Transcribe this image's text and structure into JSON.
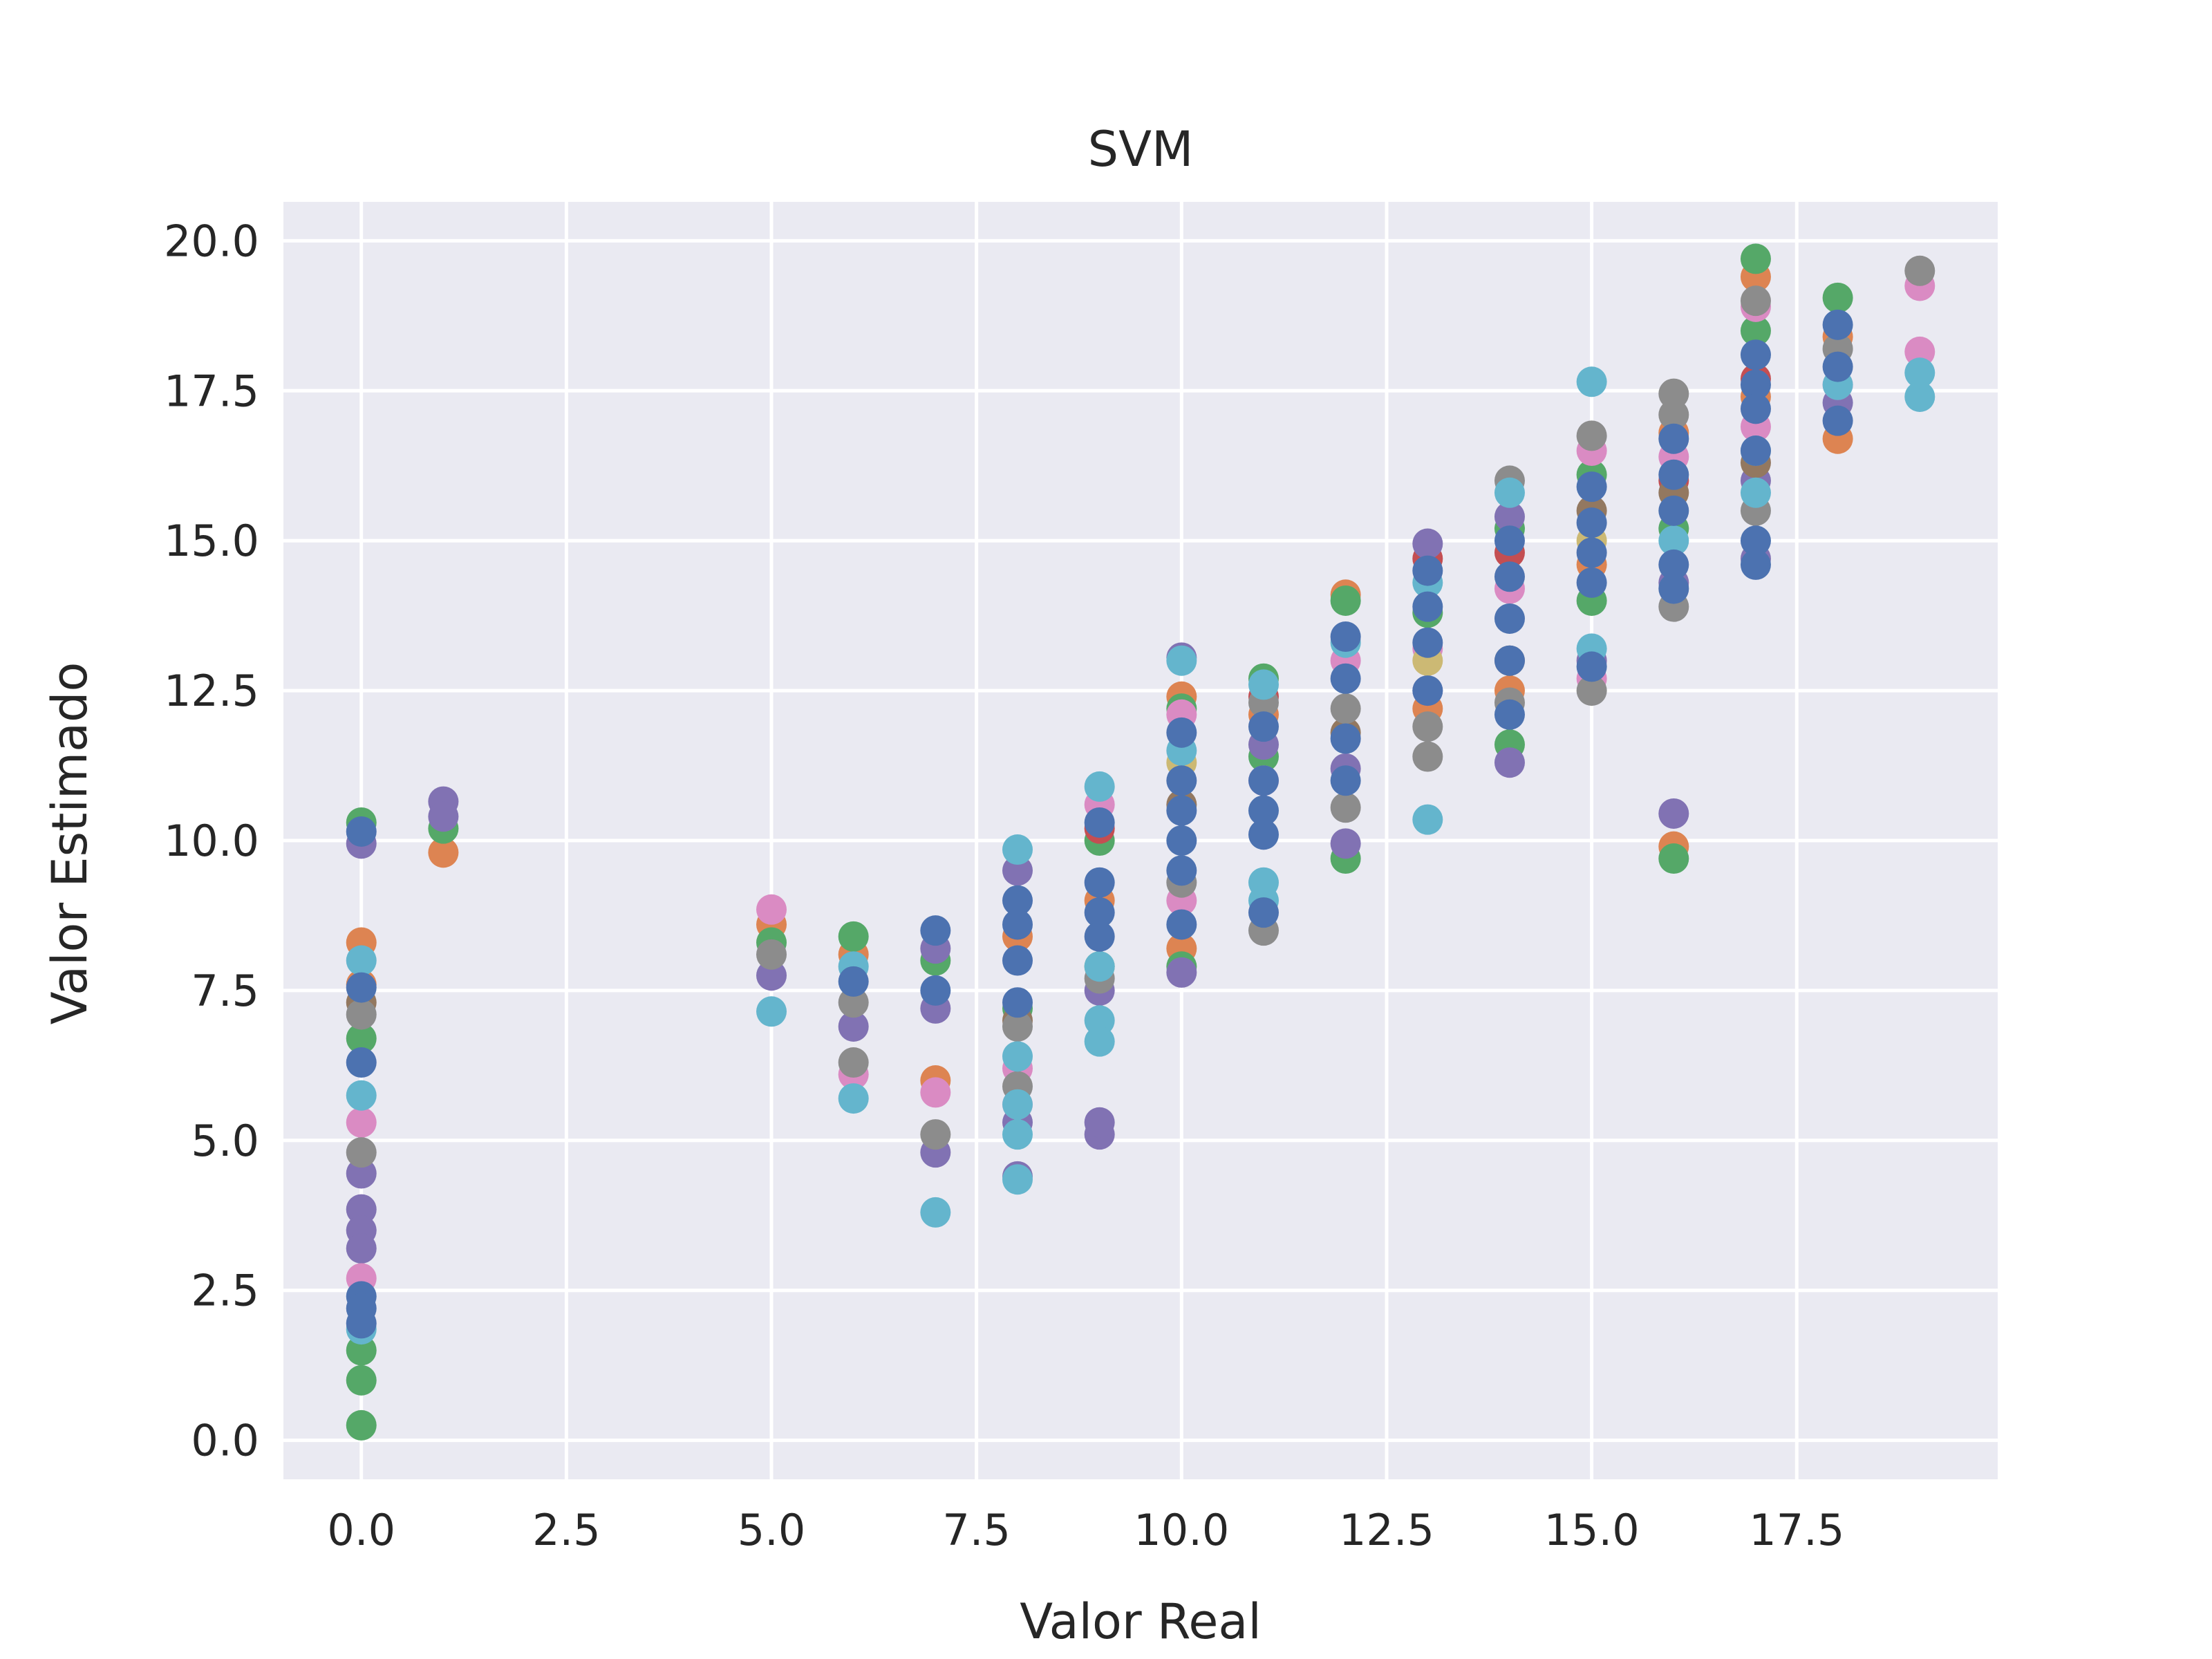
{
  "chart_data": {
    "type": "scatter",
    "title": "SVM",
    "xlabel": "Valor Real",
    "ylabel": "Valor Estimado",
    "xlim": [
      -0.95,
      19.95
    ],
    "ylim": [
      -0.65,
      20.65
    ],
    "xticks": [
      0.0,
      2.5,
      5.0,
      7.5,
      10.0,
      12.5,
      15.0,
      17.5
    ],
    "xtick_labels": [
      "0.0",
      "2.5",
      "5.0",
      "7.5",
      "10.0",
      "12.5",
      "15.0",
      "17.5"
    ],
    "yticks": [
      0.0,
      2.5,
      5.0,
      7.5,
      10.0,
      12.5,
      15.0,
      17.5,
      20.0
    ],
    "ytick_labels": [
      "0.0",
      "2.5",
      "5.0",
      "7.5",
      "10.0",
      "12.5",
      "15.0",
      "17.5",
      "20.0"
    ],
    "grid": true,
    "legend": "none",
    "background": "#eaeaf2",
    "series": [
      {
        "color": "#dd8452",
        "points": [
          [
            0,
            8.3
          ],
          [
            0,
            7.6
          ],
          [
            1,
            9.8
          ],
          [
            5,
            8.6
          ],
          [
            6,
            8.1
          ],
          [
            7,
            6.0
          ],
          [
            8,
            8.4
          ],
          [
            9,
            9.0
          ],
          [
            10,
            12.4
          ],
          [
            10,
            8.2
          ],
          [
            11,
            12.1
          ],
          [
            12,
            14.1
          ],
          [
            13,
            12.2
          ],
          [
            14,
            12.5
          ],
          [
            15,
            14.6
          ],
          [
            16,
            9.9
          ],
          [
            16,
            16.8
          ],
          [
            17,
            19.4
          ],
          [
            17,
            17.4
          ],
          [
            18,
            16.7
          ],
          [
            18,
            18.4
          ]
        ]
      },
      {
        "color": "#55a868",
        "points": [
          [
            0,
            0.25
          ],
          [
            0,
            1.0
          ],
          [
            0,
            1.5
          ],
          [
            0,
            6.7
          ],
          [
            0,
            10.3
          ],
          [
            1,
            10.2
          ],
          [
            5,
            8.3
          ],
          [
            6,
            8.4
          ],
          [
            7,
            8.0
          ],
          [
            8,
            7.2
          ],
          [
            9,
            7.9
          ],
          [
            9,
            10.0
          ],
          [
            10,
            7.9
          ],
          [
            10,
            12.2
          ],
          [
            11,
            12.7
          ],
          [
            11,
            11.4
          ],
          [
            12,
            9.7
          ],
          [
            12,
            14.0
          ],
          [
            13,
            13.8
          ],
          [
            14,
            11.6
          ],
          [
            14,
            15.2
          ],
          [
            15,
            14.0
          ],
          [
            15,
            16.1
          ],
          [
            16,
            9.7
          ],
          [
            16,
            15.2
          ],
          [
            17,
            19.7
          ],
          [
            17,
            18.5
          ],
          [
            18,
            19.05
          ]
        ]
      },
      {
        "color": "#c44e52",
        "points": [
          [
            9,
            10.2
          ],
          [
            11,
            12.4
          ],
          [
            13,
            14.7
          ],
          [
            14,
            14.8
          ],
          [
            16,
            16.0
          ],
          [
            17,
            17.7
          ]
        ]
      },
      {
        "color": "#8172b3",
        "points": [
          [
            0,
            9.95
          ],
          [
            0,
            3.85
          ],
          [
            0,
            3.5
          ],
          [
            0,
            3.2
          ],
          [
            0,
            4.45
          ],
          [
            1,
            10.65
          ],
          [
            1,
            10.4
          ],
          [
            5,
            7.75
          ],
          [
            6,
            6.9
          ],
          [
            7,
            7.2
          ],
          [
            7,
            4.8
          ],
          [
            7,
            8.2
          ],
          [
            8,
            4.4
          ],
          [
            8,
            9.5
          ],
          [
            8,
            5.3
          ],
          [
            9,
            5.1
          ],
          [
            9,
            5.3
          ],
          [
            9,
            7.5
          ],
          [
            10,
            13.05
          ],
          [
            10,
            7.8
          ],
          [
            11,
            11.6
          ],
          [
            12,
            9.95
          ],
          [
            12,
            11.2
          ],
          [
            13,
            14.95
          ],
          [
            13,
            12.5
          ],
          [
            14,
            11.3
          ],
          [
            14,
            15.4
          ],
          [
            15,
            13.0
          ],
          [
            16,
            10.45
          ],
          [
            16,
            14.3
          ],
          [
            17,
            14.7
          ],
          [
            17,
            16.0
          ],
          [
            18,
            17.3
          ]
        ]
      },
      {
        "color": "#937860",
        "points": [
          [
            0,
            7.3
          ],
          [
            8,
            7.0
          ],
          [
            10,
            10.6
          ],
          [
            12,
            11.8
          ],
          [
            14,
            13.0
          ],
          [
            15,
            15.5
          ],
          [
            16,
            15.8
          ],
          [
            17,
            16.3
          ]
        ]
      },
      {
        "color": "#da8bc3",
        "points": [
          [
            0,
            5.3
          ],
          [
            0,
            2.7
          ],
          [
            5,
            8.85
          ],
          [
            6,
            6.1
          ],
          [
            7,
            5.8
          ],
          [
            8,
            6.2
          ],
          [
            8,
            5.6
          ],
          [
            9,
            10.6
          ],
          [
            10,
            12.1
          ],
          [
            10,
            9.0
          ],
          [
            11,
            11.0
          ],
          [
            12,
            13.0
          ],
          [
            13,
            13.2
          ],
          [
            14,
            14.2
          ],
          [
            15,
            12.7
          ],
          [
            15,
            16.5
          ],
          [
            16,
            16.4
          ],
          [
            17,
            18.9
          ],
          [
            17,
            16.9
          ],
          [
            18,
            17.6
          ],
          [
            19,
            19.25
          ],
          [
            19,
            18.15
          ]
        ]
      },
      {
        "color": "#8c8c8c",
        "points": [
          [
            0,
            7.1
          ],
          [
            0,
            4.8
          ],
          [
            5,
            8.1
          ],
          [
            6,
            6.3
          ],
          [
            6,
            7.3
          ],
          [
            7,
            5.1
          ],
          [
            8,
            5.9
          ],
          [
            8,
            6.9
          ],
          [
            9,
            7.7
          ],
          [
            10,
            9.3
          ],
          [
            11,
            8.5
          ],
          [
            11,
            12.3
          ],
          [
            12,
            10.55
          ],
          [
            12,
            12.2
          ],
          [
            13,
            11.4
          ],
          [
            13,
            11.9
          ],
          [
            14,
            16.0
          ],
          [
            14,
            12.3
          ],
          [
            15,
            12.5
          ],
          [
            15,
            16.75
          ],
          [
            16,
            13.9
          ],
          [
            16,
            17.45
          ],
          [
            16,
            17.1
          ],
          [
            17,
            19.0
          ],
          [
            17,
            15.5
          ],
          [
            18,
            18.2
          ],
          [
            19,
            19.5
          ]
        ]
      },
      {
        "color": "#ccb974",
        "points": [
          [
            10,
            11.3
          ],
          [
            13,
            13.0
          ],
          [
            15,
            15.0
          ]
        ]
      },
      {
        "color": "#64b5cd",
        "points": [
          [
            0,
            8.0
          ],
          [
            0,
            5.75
          ],
          [
            0,
            1.85
          ],
          [
            5,
            7.15
          ],
          [
            6,
            5.7
          ],
          [
            6,
            7.9
          ],
          [
            7,
            3.8
          ],
          [
            8,
            4.35
          ],
          [
            8,
            5.1
          ],
          [
            8,
            5.6
          ],
          [
            8,
            6.4
          ],
          [
            8,
            9.85
          ],
          [
            9,
            10.9
          ],
          [
            9,
            7.0
          ],
          [
            9,
            6.65
          ],
          [
            9,
            7.9
          ],
          [
            10,
            13.0
          ],
          [
            10,
            11.5
          ],
          [
            11,
            12.6
          ],
          [
            11,
            9.3
          ],
          [
            11,
            9.0
          ],
          [
            12,
            13.3
          ],
          [
            13,
            10.35
          ],
          [
            13,
            14.3
          ],
          [
            14,
            15.8
          ],
          [
            15,
            17.65
          ],
          [
            15,
            13.2
          ],
          [
            16,
            15.0
          ],
          [
            17,
            15.8
          ],
          [
            17,
            16.5
          ],
          [
            18,
            17.6
          ],
          [
            19,
            17.4
          ],
          [
            19,
            17.8
          ]
        ]
      },
      {
        "color": "#4c72b0",
        "points": [
          [
            0,
            10.15
          ],
          [
            0,
            7.55
          ],
          [
            0,
            6.3
          ],
          [
            0,
            2.4
          ],
          [
            0,
            2.2
          ],
          [
            0,
            1.95
          ],
          [
            6,
            7.65
          ],
          [
            7,
            8.5
          ],
          [
            7,
            7.5
          ],
          [
            8,
            9.0
          ],
          [
            8,
            8.0
          ],
          [
            8,
            7.3
          ],
          [
            8,
            8.6
          ],
          [
            9,
            10.3
          ],
          [
            9,
            9.3
          ],
          [
            9,
            8.8
          ],
          [
            9,
            8.4
          ],
          [
            10,
            11.8
          ],
          [
            10,
            11.0
          ],
          [
            10,
            10.5
          ],
          [
            10,
            10.0
          ],
          [
            10,
            9.5
          ],
          [
            10,
            8.6
          ],
          [
            11,
            11.9
          ],
          [
            11,
            11.0
          ],
          [
            11,
            10.5
          ],
          [
            11,
            10.1
          ],
          [
            11,
            8.8
          ],
          [
            12,
            13.4
          ],
          [
            12,
            12.7
          ],
          [
            12,
            11.7
          ],
          [
            12,
            11.0
          ],
          [
            13,
            14.5
          ],
          [
            13,
            13.9
          ],
          [
            13,
            13.3
          ],
          [
            13,
            12.5
          ],
          [
            14,
            15.0
          ],
          [
            14,
            14.4
          ],
          [
            14,
            13.7
          ],
          [
            14,
            13.0
          ],
          [
            14,
            12.1
          ],
          [
            15,
            15.9
          ],
          [
            15,
            15.3
          ],
          [
            15,
            14.8
          ],
          [
            15,
            14.3
          ],
          [
            15,
            12.9
          ],
          [
            16,
            16.7
          ],
          [
            16,
            16.1
          ],
          [
            16,
            15.5
          ],
          [
            16,
            14.6
          ],
          [
            16,
            14.2
          ],
          [
            17,
            18.1
          ],
          [
            17,
            17.6
          ],
          [
            17,
            17.2
          ],
          [
            17,
            16.5
          ],
          [
            17,
            15.0
          ],
          [
            17,
            14.6
          ],
          [
            18,
            18.6
          ],
          [
            18,
            17.9
          ],
          [
            18,
            17.0
          ]
        ]
      }
    ]
  }
}
